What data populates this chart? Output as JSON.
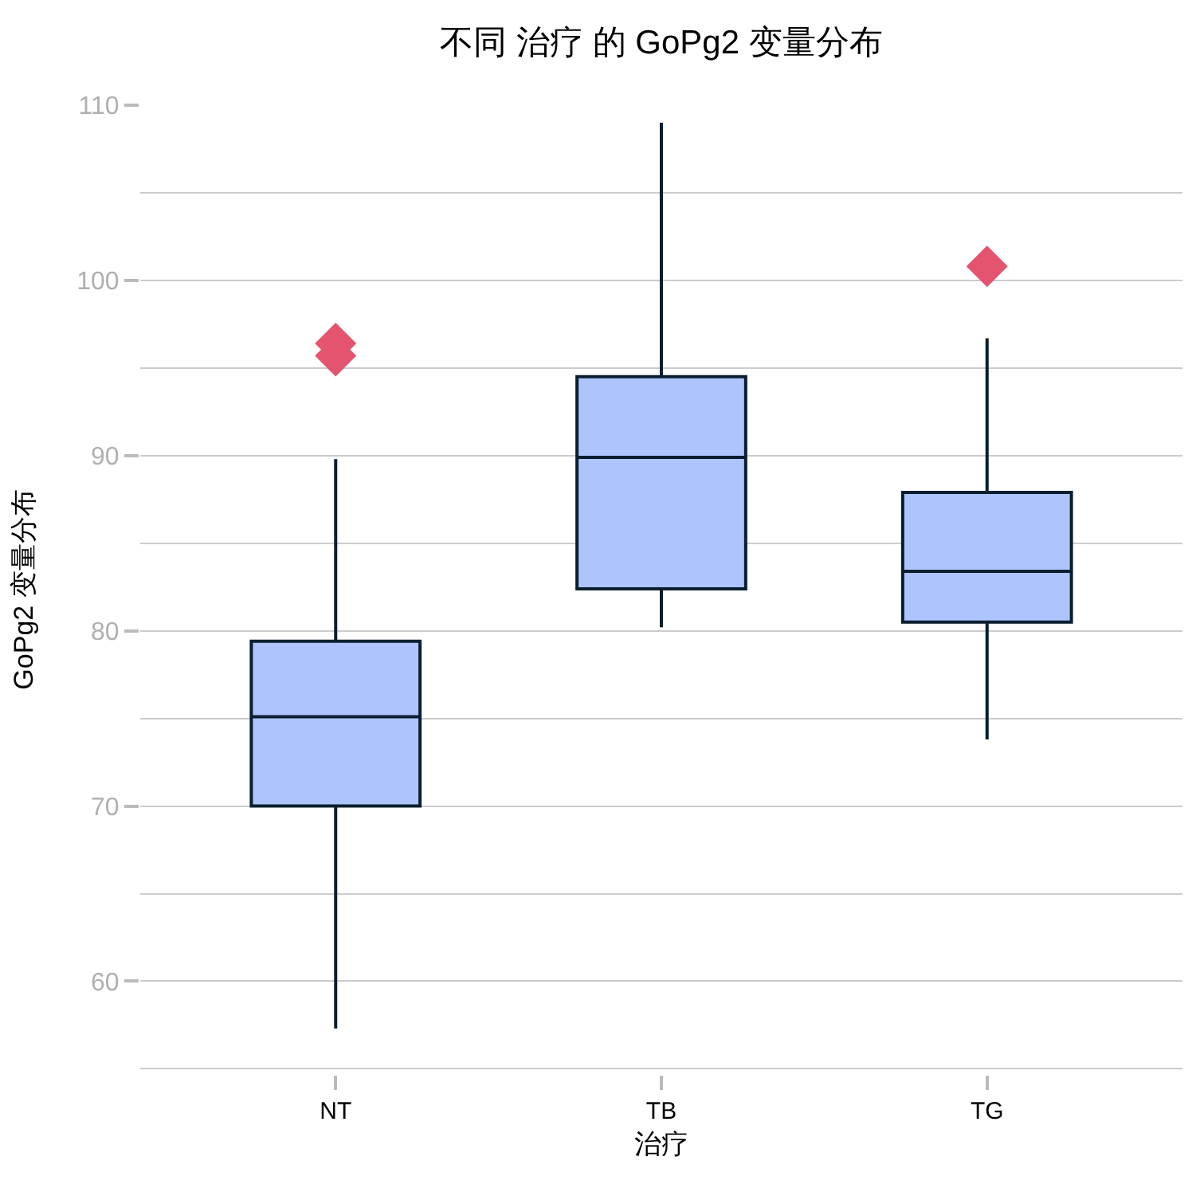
{
  "chart_data": {
    "type": "box",
    "title": "不同 治疗 的 GoPg2 变量分布",
    "xlabel": "治疗",
    "ylabel": "GoPg2 变量分布",
    "categories": [
      "NT",
      "TB",
      "TG"
    ],
    "series": [
      {
        "type": "box",
        "color": "#adc5fc",
        "boxes": [
          {
            "low": 57.3,
            "q1": 70.0,
            "median": 75.1,
            "q3": 79.4,
            "high": 89.8
          },
          {
            "low": 80.2,
            "q1": 82.4,
            "median": 89.9,
            "q3": 94.5,
            "high": 109.0
          },
          {
            "low": 73.8,
            "q1": 80.5,
            "median": 83.4,
            "q3": 87.9,
            "high": 96.7
          }
        ]
      },
      {
        "type": "scatter",
        "x": [
          "NT",
          "NT",
          "TG"
        ],
        "values": [
          96.4,
          95.7,
          100.8
        ],
        "color": "#e4546f"
      }
    ],
    "marker": "diamond",
    "ylim": [
      54.7,
      110
    ],
    "yticks": [
      {
        "value": 55,
        "label": null
      },
      60,
      {
        "value": 65,
        "label": null
      },
      70,
      {
        "value": 75,
        "label": null
      },
      80,
      {
        "value": 85,
        "label": null
      },
      90,
      {
        "value": 95,
        "label": null
      },
      100,
      {
        "value": 105,
        "label": null
      },
      110
    ],
    "grid": "y"
  }
}
